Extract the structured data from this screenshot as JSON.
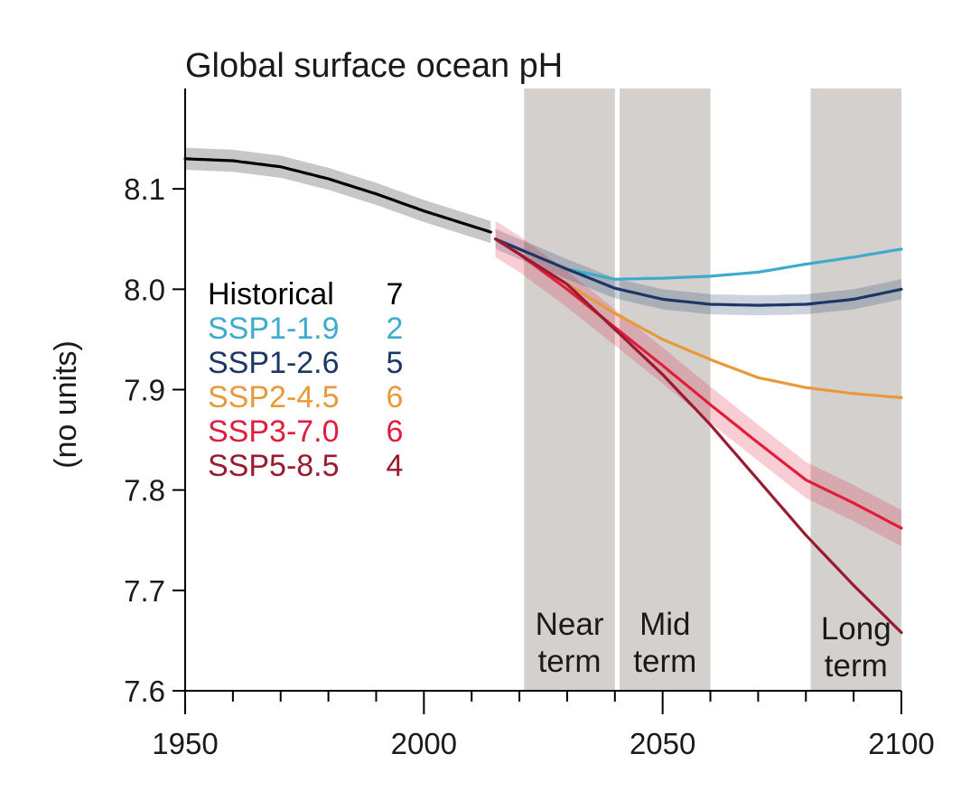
{
  "chart_data": {
    "type": "line",
    "title": "Global surface ocean pH",
    "xlabel": "",
    "ylabel": "(no units)",
    "xlim": [
      1950,
      2100
    ],
    "ylim": [
      7.6,
      8.2
    ],
    "x_ticks": [
      1950,
      2000,
      2050,
      2100
    ],
    "x_tick_labels": [
      "1950",
      "2000",
      "2050",
      "2100"
    ],
    "y_ticks": [
      7.6,
      7.7,
      7.8,
      7.9,
      8.0,
      8.1
    ],
    "y_tick_labels": [
      "7.6",
      "7.7",
      "7.8",
      "7.9",
      "8.0",
      "8.1"
    ],
    "periods": [
      {
        "name": "near-term",
        "label_lines": [
          "Near",
          "term"
        ],
        "start": 2021,
        "end": 2040
      },
      {
        "name": "mid-term",
        "label_lines": [
          "Mid",
          "term"
        ],
        "start": 2041,
        "end": 2060
      },
      {
        "name": "long-term",
        "label_lines": [
          "Long",
          "term"
        ],
        "start": 2081,
        "end": 2100
      }
    ],
    "series": [
      {
        "name": "Historical",
        "models": "7",
        "color": "#000000",
        "x": [
          1950,
          1960,
          1970,
          1980,
          1990,
          2000,
          2010,
          2014
        ],
        "values": [
          8.13,
          8.128,
          8.122,
          8.11,
          8.095,
          8.078,
          8.063,
          8.057
        ],
        "band": 0.011
      },
      {
        "name": "SSP1-1.9",
        "models": "2",
        "color": "#3CABCE",
        "x": [
          2015,
          2020,
          2030,
          2040,
          2050,
          2060,
          2070,
          2080,
          2090,
          2100
        ],
        "values": [
          8.05,
          8.04,
          8.02,
          8.01,
          8.011,
          8.013,
          8.017,
          8.025,
          8.032,
          8.04
        ],
        "band": 0
      },
      {
        "name": "SSP1-2.6",
        "models": "5",
        "color": "#1C3766",
        "x": [
          2015,
          2020,
          2030,
          2040,
          2050,
          2060,
          2070,
          2080,
          2090,
          2100
        ],
        "values": [
          8.05,
          8.04,
          8.02,
          8.001,
          7.99,
          7.985,
          7.984,
          7.985,
          7.99,
          8.0
        ],
        "band": 0.01
      },
      {
        "name": "SSP2-4.5",
        "models": "6",
        "color": "#E9993A",
        "x": [
          2015,
          2020,
          2030,
          2040,
          2050,
          2060,
          2070,
          2080,
          2090,
          2100
        ],
        "values": [
          8.05,
          8.035,
          8.005,
          7.976,
          7.95,
          7.93,
          7.912,
          7.902,
          7.896,
          7.892
        ],
        "band": 0
      },
      {
        "name": "SSP3-7.0",
        "models": "6",
        "color": "#E01E3C",
        "x": [
          2015,
          2020,
          2030,
          2040,
          2050,
          2060,
          2070,
          2080,
          2090,
          2100
        ],
        "values": [
          8.05,
          8.035,
          8.0,
          7.962,
          7.924,
          7.885,
          7.847,
          7.81,
          7.787,
          7.762
        ],
        "band": 0.018
      },
      {
        "name": "SSP5-8.5",
        "models": "4",
        "color": "#9A1B2F",
        "x": [
          2015,
          2020,
          2030,
          2040,
          2050,
          2060,
          2070,
          2080,
          2090,
          2100
        ],
        "values": [
          8.05,
          8.035,
          8.005,
          7.96,
          7.915,
          7.865,
          7.81,
          7.755,
          7.705,
          7.658
        ],
        "band": 0
      }
    ]
  }
}
